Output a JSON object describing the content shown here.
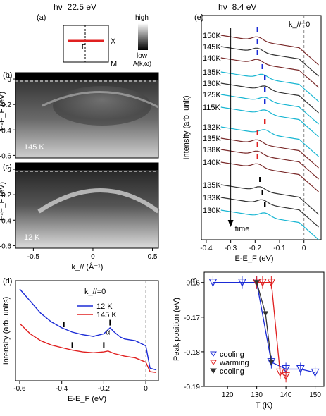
{
  "header": {
    "photon_left": "hν=22.5 eV",
    "photon_right": "hν=8.4 eV"
  },
  "panels": {
    "a": "(a)",
    "b": "(b)",
    "c": "(c)",
    "d": "(d)",
    "e": "(e)",
    "f": "(f)"
  },
  "bz": {
    "gamma": "Γ",
    "x": "X",
    "m": "M"
  },
  "colorbar": {
    "high": "high",
    "low": "low",
    "label": "A(k,ω)"
  },
  "map_b": {
    "temp": "145 K"
  },
  "map_c": {
    "temp": "12 K"
  },
  "colors": {
    "cooling": "#1b2bd6",
    "warming": "#e02020",
    "gray_cool": "#333333",
    "cyan": "#19b6d2",
    "maroon": "#7a2a2a"
  },
  "chart_data": [
    {
      "type": "heatmap",
      "id": "b",
      "ylabel": "E-E_F (eV)",
      "ylim": [
        -0.62,
        0.05
      ],
      "yticks": [
        "0",
        "-0.2",
        "-0.4",
        "-0.6"
      ]
    },
    {
      "type": "heatmap",
      "id": "c",
      "xlabel": "k_// (Å⁻¹)",
      "ylabel": "E-E_F (eV)",
      "xlim": [
        -0.65,
        0.55
      ],
      "ylim": [
        -0.62,
        0.05
      ],
      "xticks": [
        "-0.5",
        "0",
        "0.5"
      ],
      "yticks": [
        "0",
        "-0.2",
        "-0.4",
        "-0.6"
      ]
    },
    {
      "type": "line",
      "id": "d",
      "annotation": "k_//=0",
      "xlabel": "E-E_F (eV)",
      "ylabel": "Intensity (arb. units)",
      "xlim": [
        -0.62,
        0.06
      ],
      "xticks": [
        "-0.6",
        "-0.4",
        "-0.2",
        "0"
      ],
      "alpha_label": "α",
      "series": [
        {
          "name": "12 K",
          "color": "#1b2bd6",
          "x": [
            -0.6,
            -0.55,
            -0.5,
            -0.45,
            -0.4,
            -0.35,
            -0.3,
            -0.25,
            -0.2,
            -0.17,
            -0.15,
            -0.12,
            -0.1,
            -0.05,
            0,
            0.02,
            0.05
          ],
          "y": [
            1.0,
            0.86,
            0.72,
            0.62,
            0.55,
            0.5,
            0.47,
            0.45,
            0.48,
            0.55,
            0.5,
            0.44,
            0.42,
            0.4,
            0.34,
            0.08,
            0.06
          ]
        },
        {
          "name": "145 K",
          "color": "#e02020",
          "x": [
            -0.6,
            -0.55,
            -0.5,
            -0.45,
            -0.4,
            -0.35,
            -0.3,
            -0.25,
            -0.2,
            -0.18,
            -0.15,
            -0.1,
            -0.05,
            0,
            0.02,
            0.05
          ],
          "y": [
            0.6,
            0.48,
            0.4,
            0.35,
            0.32,
            0.29,
            0.27,
            0.26,
            0.27,
            0.28,
            0.25,
            0.22,
            0.2,
            0.15,
            0.04,
            0.03
          ]
        }
      ]
    },
    {
      "type": "line",
      "id": "e",
      "annotation": "k_//=0",
      "xlabel": "E-E_F (eV)",
      "ylabel": "Intensity (arb. unit)",
      "xlim": [
        -0.42,
        0.07
      ],
      "xticks": [
        "-0.4",
        "-0.3",
        "-0.2",
        "-0.1",
        "0"
      ],
      "arrow_label": "time",
      "series": [
        {
          "name": "150K",
          "color": "#7a2a2a",
          "peak": -0.19
        },
        {
          "name": "145K",
          "color": "#333333",
          "peak": -0.19
        },
        {
          "name": "140K",
          "color": "#7a2a2a",
          "peak": -0.19
        },
        {
          "name": "135K",
          "color": "#19b6d2",
          "peak": -0.17
        },
        {
          "name": "130K",
          "color": "#333333",
          "peak": -0.16
        },
        {
          "name": "125K",
          "color": "#19b6d2",
          "peak": -0.16
        },
        {
          "name": "115K",
          "color": "#19b6d2",
          "peak": -0.16
        },
        {
          "name": "132K",
          "color": "#19b6d2",
          "peak": -0.16
        },
        {
          "name": "135K",
          "color": "#7a2a2a",
          "peak": -0.19
        },
        {
          "name": "138K",
          "color": "#7a2a2a",
          "peak": -0.19
        },
        {
          "name": "140K",
          "color": "#7a2a2a",
          "peak": -0.19
        },
        {
          "name": "135K",
          "color": "#333333",
          "peak": -0.18
        },
        {
          "name": "133K",
          "color": "#333333",
          "peak": -0.17
        },
        {
          "name": "130K",
          "color": "#19b6d2",
          "peak": -0.16
        }
      ]
    },
    {
      "type": "scatter",
      "id": "f",
      "xlabel": "T (K)",
      "ylabel": "Peak position (eV)",
      "xlim": [
        112,
        153
      ],
      "ylim": [
        -0.19,
        -0.157
      ],
      "xticks": [
        "120",
        "130",
        "140",
        "150"
      ],
      "yticks": [
        "-0.16",
        "-0.17",
        "-0.18",
        "-0.19"
      ],
      "series": [
        {
          "name": "cooling",
          "color": "#1b2bd6",
          "x": [
            115,
            125,
            130,
            135,
            140,
            145,
            150
          ],
          "y": [
            -0.16,
            -0.16,
            -0.16,
            -0.183,
            -0.185,
            -0.185,
            -0.186
          ]
        },
        {
          "name": "warming",
          "color": "#e02020",
          "x": [
            130,
            132,
            135,
            138,
            140
          ],
          "y": [
            -0.16,
            -0.16,
            -0.16,
            -0.186,
            -0.187
          ]
        },
        {
          "name": "cooling",
          "color": "#333333",
          "x": [
            130,
            133,
            135
          ],
          "y": [
            -0.16,
            -0.169,
            -0.183
          ]
        }
      ]
    }
  ]
}
